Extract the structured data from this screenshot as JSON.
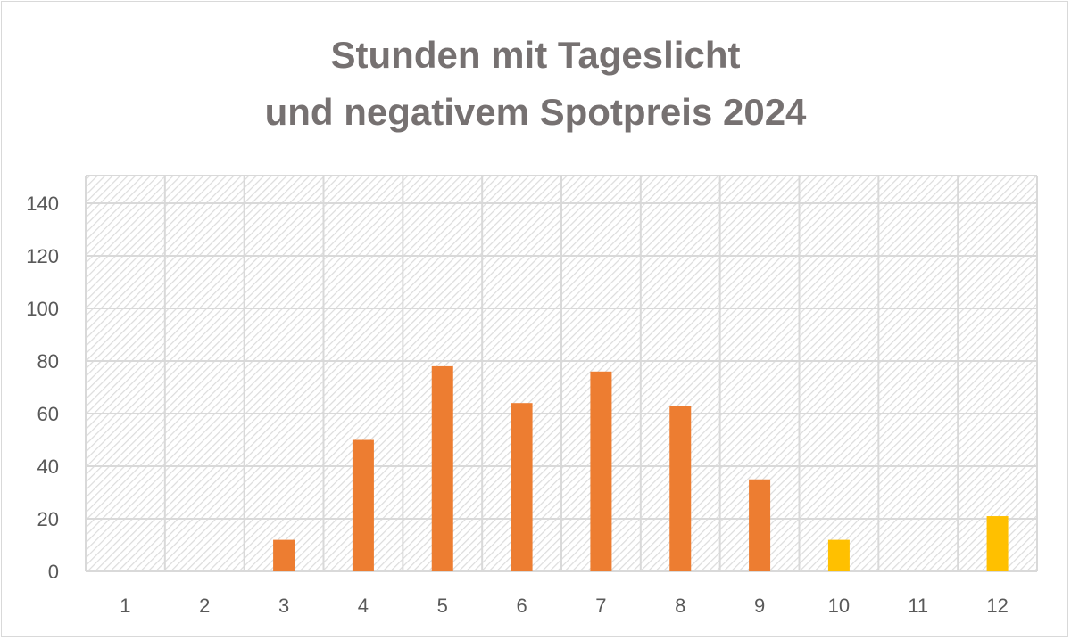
{
  "chart_data": {
    "type": "bar",
    "title_lines": [
      "Stunden mit Tageslicht",
      "und negativem Spotpreis 2024"
    ],
    "xlabel": "",
    "ylabel": "",
    "categories": [
      "1",
      "2",
      "3",
      "4",
      "5",
      "6",
      "7",
      "8",
      "9",
      "10",
      "11",
      "12"
    ],
    "values": [
      0,
      0,
      12,
      50,
      78,
      64,
      76,
      63,
      35,
      12,
      0,
      21
    ],
    "bar_colors": [
      "#ed7d31",
      "#ed7d31",
      "#ed7d31",
      "#ed7d31",
      "#ed7d31",
      "#ed7d31",
      "#ed7d31",
      "#ed7d31",
      "#ed7d31",
      "#ffc000",
      "#ffc000",
      "#ffc000"
    ],
    "ylim": [
      0,
      140
    ],
    "yticks": [
      0,
      20,
      40,
      60,
      80,
      100,
      120,
      140
    ],
    "grid": true,
    "legend": "none",
    "plot_background": "hatched light gray"
  }
}
